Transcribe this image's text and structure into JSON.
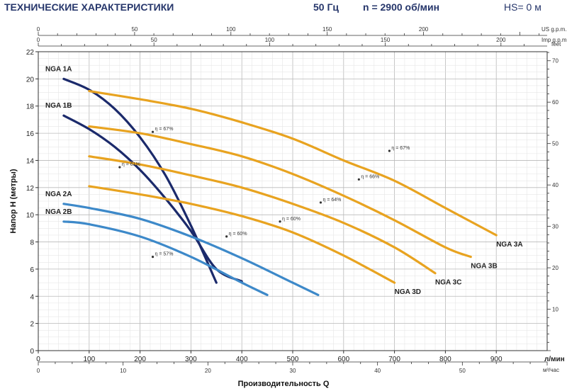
{
  "header": {
    "title": "ТЕХНИЧЕСКИЕ ХАРАКТЕРИСТИКИ",
    "frequency": "50 Гц",
    "speed": "n  = 2900 об/мин",
    "hs": "HS= 0 м"
  },
  "chart_data": {
    "type": "line",
    "xlabel": "Производительность Q",
    "ylabel": "Напор H (метры)",
    "x_unit": "л/мин",
    "x_alt_unit": "м³/час",
    "y_right_unit": "feet",
    "top_unit_us": "US g.p.m.",
    "top_unit_imp": "Imp g.p.m.",
    "xlim": [
      0,
      1000
    ],
    "ylim": [
      0,
      22
    ],
    "grid": true,
    "x_ticks": [
      "0",
      "100",
      "200",
      "300",
      "400",
      "500",
      "600",
      "700",
      "800",
      "900"
    ],
    "y_ticks": [
      "0",
      "2",
      "4",
      "6",
      "8",
      "10",
      "12",
      "14",
      "16",
      "18",
      "20",
      "22"
    ],
    "m3h_ticks": [
      "0",
      "10",
      "20",
      "30",
      "40",
      "50"
    ],
    "us_ticks": [
      "0",
      "50",
      "100",
      "150",
      "200"
    ],
    "imp_ticks": [
      "0",
      "50",
      "100",
      "150",
      "200"
    ],
    "feet_ticks": [
      "10",
      "20",
      "30",
      "40",
      "50",
      "60",
      "70"
    ],
    "series": [
      {
        "name": "NGA 1A",
        "color": "#1b2a6b",
        "x": [
          50,
          100,
          150,
          200,
          250,
          300,
          350
        ],
        "y": [
          20.0,
          19.2,
          17.8,
          15.7,
          12.9,
          9.2,
          5.0
        ]
      },
      {
        "name": "NGA 1B",
        "color": "#1b2a6b",
        "x": [
          50,
          100,
          150,
          200,
          250,
          300,
          350,
          400
        ],
        "y": [
          17.3,
          16.3,
          15.0,
          13.3,
          11.2,
          8.8,
          6.0,
          5.1
        ]
      },
      {
        "name": "NGA 2A",
        "color": "#3d89c9",
        "x": [
          50,
          100,
          200,
          300,
          400,
          500,
          550
        ],
        "y": [
          10.8,
          10.5,
          9.7,
          8.4,
          6.8,
          5.0,
          4.1
        ]
      },
      {
        "name": "NGA 2B",
        "color": "#3d89c9",
        "x": [
          50,
          100,
          200,
          300,
          400,
          450
        ],
        "y": [
          9.5,
          9.3,
          8.4,
          6.9,
          5.0,
          4.1
        ]
      },
      {
        "name": "NGA 3A",
        "color": "#e8a320",
        "x": [
          100,
          200,
          300,
          400,
          500,
          600,
          700,
          800,
          900
        ],
        "y": [
          19.1,
          18.5,
          17.8,
          16.8,
          15.6,
          14.0,
          12.5,
          10.5,
          8.5
        ]
      },
      {
        "name": "NGA 3B",
        "color": "#e8a320",
        "x": [
          100,
          200,
          300,
          400,
          500,
          600,
          700,
          800,
          850
        ],
        "y": [
          16.5,
          16.0,
          15.2,
          14.3,
          13.0,
          11.4,
          9.6,
          7.6,
          6.9
        ]
      },
      {
        "name": "NGA 3C",
        "color": "#e8a320",
        "x": [
          100,
          200,
          300,
          400,
          500,
          600,
          700,
          780
        ],
        "y": [
          14.3,
          13.7,
          12.9,
          12.0,
          10.8,
          9.4,
          7.6,
          5.7
        ]
      },
      {
        "name": "NGA 3D",
        "color": "#e8a320",
        "x": [
          100,
          200,
          300,
          400,
          500,
          600,
          700
        ],
        "y": [
          12.1,
          11.5,
          10.8,
          9.9,
          8.7,
          7.0,
          5.0
        ]
      }
    ],
    "annotations": [
      {
        "text": "η = 67%",
        "x": 225,
        "y": 16.1
      },
      {
        "text": "η = 61%",
        "x": 160,
        "y": 13.5
      },
      {
        "text": "η = 60%",
        "x": 370,
        "y": 8.4
      },
      {
        "text": "η = 57%",
        "x": 225,
        "y": 6.9
      },
      {
        "text": "η = 67%",
        "x": 690,
        "y": 14.7
      },
      {
        "text": "η = 66%",
        "x": 630,
        "y": 12.6
      },
      {
        "text": "η = 64%",
        "x": 555,
        "y": 10.9
      },
      {
        "text": "η = 60%",
        "x": 475,
        "y": 9.5
      }
    ]
  }
}
